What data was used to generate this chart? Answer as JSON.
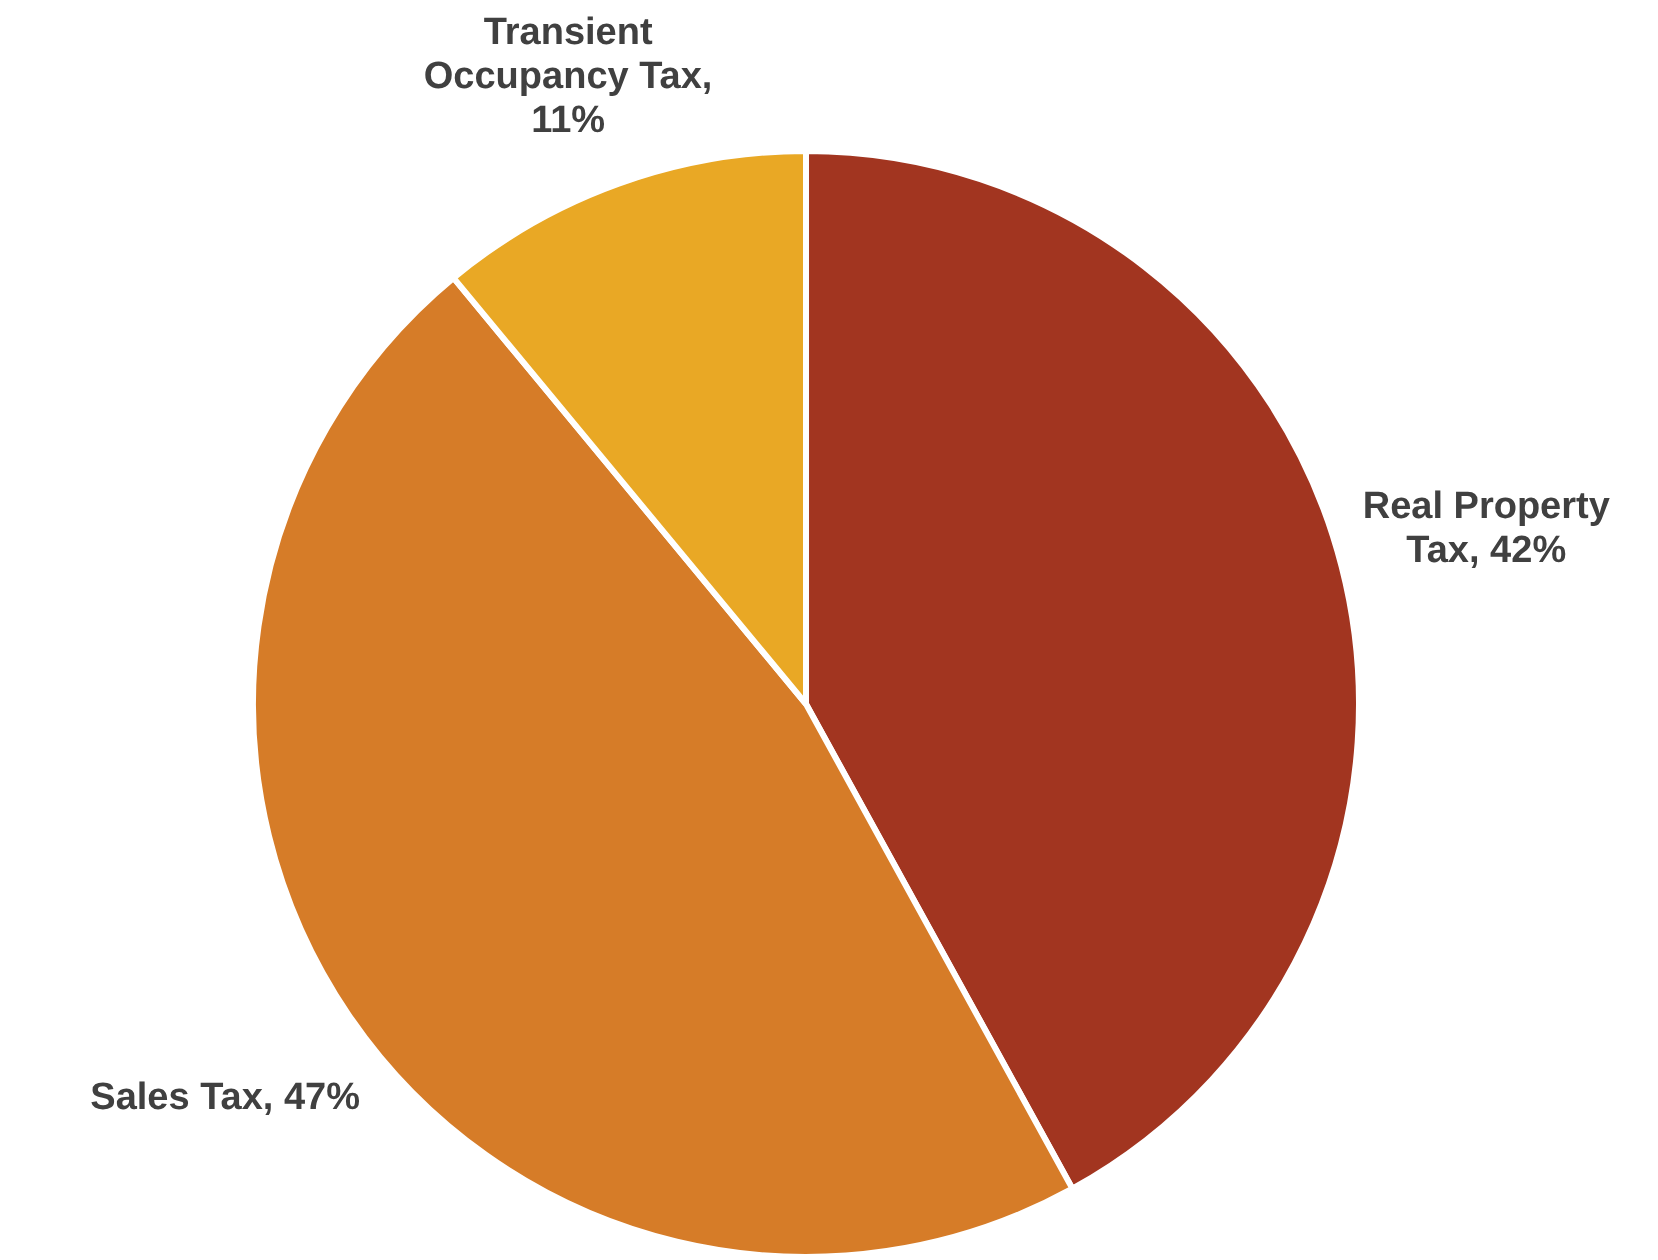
{
  "chart_data": {
    "type": "pie",
    "categories": [
      "Real Property Tax",
      "Sales Tax",
      "Transient Occupancy Tax"
    ],
    "values": [
      42,
      47,
      11
    ],
    "colors": [
      "#a23520",
      "#d67c28",
      "#e9a825"
    ],
    "value_labels": [
      ", 42%",
      ", 47%",
      ", 11%"
    ],
    "legend": false
  }
}
